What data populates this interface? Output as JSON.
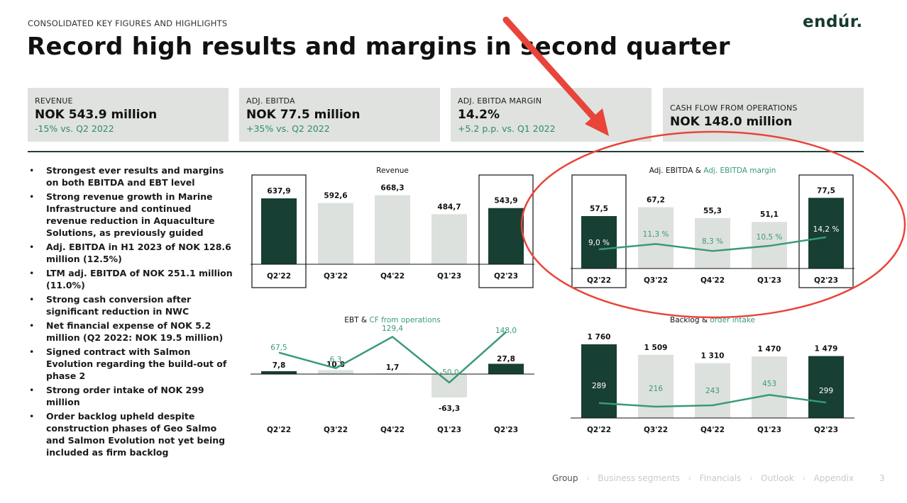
{
  "header": {
    "kicker": "CONSOLIDATED KEY FIGURES AND HIGHLIGHTS",
    "title": "Record high results and margins in second quarter",
    "logo": "endúr."
  },
  "kpis": [
    {
      "label": "REVENUE",
      "value": "NOK 543.9 million",
      "sub": "-15% vs. Q2 2022"
    },
    {
      "label": "ADJ. EBITDA",
      "value": "NOK 77.5 million",
      "sub": "+35% vs. Q2 2022"
    },
    {
      "label": "ADJ. EBITDA MARGIN",
      "value": "14.2%",
      "sub": "+5.2 p.p. vs. Q1 2022"
    },
    {
      "label": "CASH FLOW FROM OPERATIONS",
      "value": "NOK 148.0 million",
      "sub": ""
    }
  ],
  "bullets": [
    "Strongest ever results and margins on both EBITDA and EBT level",
    "Strong revenue growth in Marine Infrastructure and continued revenue reduction in Aquaculture Solutions, as previously guided",
    "Adj. EBITDA in H1 2023 of NOK 128.6 million (12.5%)",
    "LTM adj. EBITDA of NOK 251.1 million (11.0%)",
    "Strong cash conversion after significant reduction in NWC",
    "Net financial expense of NOK 5.2 million (Q2 2022: NOK 19.5 million)",
    "Signed contract with Salmon Evolution regarding the build-out of phase 2",
    "Strong order intake of NOK 299 million",
    "Order backlog upheld despite construction phases of Geo Salmo and Salmon Evolution not yet being included as firm backlog"
  ],
  "colors": {
    "dark": "#173f33",
    "light": "#dde1dd",
    "accent": "#3a9a76",
    "annotation": "#e8443a"
  },
  "chart_data": [
    {
      "type": "bar",
      "title": "Revenue",
      "categories": [
        "Q2'22",
        "Q3'22",
        "Q4'22",
        "Q1'23",
        "Q2'23"
      ],
      "values": [
        637.9,
        592.6,
        668.3,
        484.7,
        543.9
      ],
      "labels": [
        "637,9",
        "592,6",
        "668,3",
        "484,7",
        "543,9"
      ],
      "highlight": [
        0,
        4
      ]
    },
    {
      "type": "bar",
      "title": "Adj. EBITDA",
      "title_join": "&",
      "title_line": "Adj. EBITDA margin",
      "categories": [
        "Q2'22",
        "Q3'22",
        "Q4'22",
        "Q1'23",
        "Q2'23"
      ],
      "values": [
        57.5,
        67.2,
        55.3,
        51.1,
        77.5
      ],
      "labels": [
        "57,5",
        "67,2",
        "55,3",
        "51,1",
        "77,5"
      ],
      "line_values": [
        9.0,
        11.3,
        8.3,
        10.5,
        14.2
      ],
      "line_labels": [
        "9,0 %",
        "11,3 %",
        "8,3 %",
        "10,5 %",
        "14,2 %"
      ],
      "highlight": [
        0,
        4
      ]
    },
    {
      "type": "bar",
      "title": "EBT",
      "title_join": "&",
      "title_line": "CF from operations",
      "categories": [
        "Q2'22",
        "Q3'22",
        "Q4'22",
        "Q1'23",
        "Q2'23"
      ],
      "values": [
        7.8,
        10.8,
        1.7,
        -63.3,
        27.8
      ],
      "labels": [
        "7,8",
        "10,8",
        "1,7",
        "-63,3",
        "27,8"
      ],
      "line_values": [
        67.5,
        6.3,
        129.4,
        -50.0,
        148.0
      ],
      "line_labels": [
        "67,5",
        "6,3",
        "129,4",
        "-50,0",
        "148,0"
      ]
    },
    {
      "type": "bar",
      "title": "Backlog",
      "title_join": "&",
      "title_line": "order intake",
      "categories": [
        "Q2'22",
        "Q3'22",
        "Q4'22",
        "Q1'23",
        "Q2'23"
      ],
      "values": [
        1760,
        1509,
        1310,
        1470,
        1479
      ],
      "labels": [
        "1 760",
        "1 509",
        "1 310",
        "1 470",
        "1 479"
      ],
      "line_values": [
        289,
        216,
        243,
        453,
        299
      ],
      "line_labels": [
        "289",
        "216",
        "243",
        "453",
        "299"
      ]
    }
  ],
  "footer": {
    "items": [
      "Group",
      "Business segments",
      "Financials",
      "Outlook",
      "Appendix"
    ],
    "page": "3"
  }
}
